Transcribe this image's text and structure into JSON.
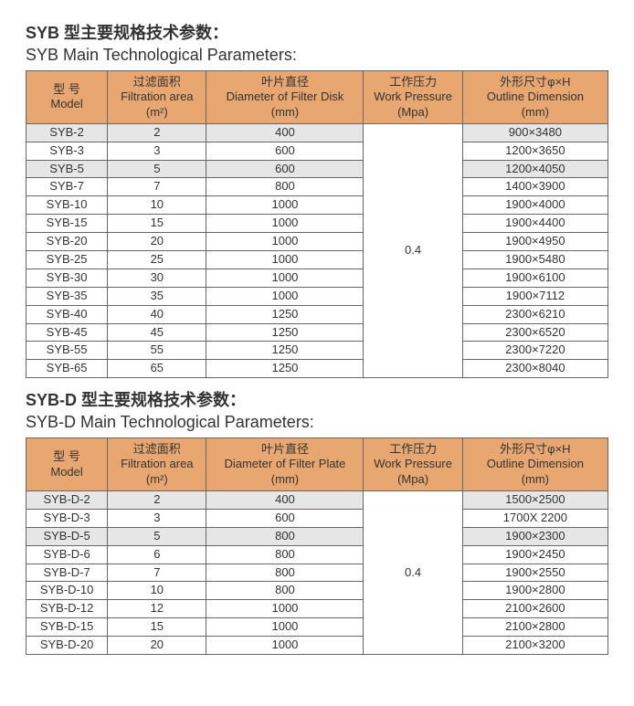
{
  "section1": {
    "title_cn": "SYB 型主要规格技术参数：",
    "title_en": "SYB Main Technological Parameters:",
    "headers": {
      "model_cn": "型 号",
      "model_en": "Model",
      "area_cn": "过滤面积",
      "area_en": "Filtration area",
      "area_unit": "(m²)",
      "diameter_cn": "叶片直径",
      "diameter_en": "Diameter of Filter Disk",
      "diameter_unit": "(mm)",
      "pressure_cn": "工作压力",
      "pressure_en": "Work Pressure",
      "pressure_unit": "(Mpa)",
      "outline_cn": "外形尺寸φ×H",
      "outline_en": "Outline Dimension",
      "outline_unit": "(mm)"
    },
    "pressure_value": "0.4",
    "col_widths": [
      "14%",
      "17%",
      "27%",
      "17%",
      "25%"
    ],
    "rows": [
      {
        "model": "SYB-2",
        "area": "2",
        "diameter": "400",
        "outline": "900×3480",
        "shade": true
      },
      {
        "model": "SYB-3",
        "area": "3",
        "diameter": "600",
        "outline": "1200×3650",
        "shade": false
      },
      {
        "model": "SYB-5",
        "area": "5",
        "diameter": "600",
        "outline": "1200×4050",
        "shade": true
      },
      {
        "model": "SYB-7",
        "area": "7",
        "diameter": "800",
        "outline": "1400×3900",
        "shade": false
      },
      {
        "model": "SYB-10",
        "area": "10",
        "diameter": "1000",
        "outline": "1900×4000",
        "shade": false
      },
      {
        "model": "SYB-15",
        "area": "15",
        "diameter": "1000",
        "outline": "1900×4400",
        "shade": false
      },
      {
        "model": "SYB-20",
        "area": "20",
        "diameter": "1000",
        "outline": "1900×4950",
        "shade": false
      },
      {
        "model": "SYB-25",
        "area": "25",
        "diameter": "1000",
        "outline": "1900×5480",
        "shade": false
      },
      {
        "model": "SYB-30",
        "area": "30",
        "diameter": "1000",
        "outline": "1900×6100",
        "shade": false
      },
      {
        "model": "SYB-35",
        "area": "35",
        "diameter": "1000",
        "outline": "1900×7112",
        "shade": false
      },
      {
        "model": "SYB-40",
        "area": "40",
        "diameter": "1250",
        "outline": "2300×6210",
        "shade": false
      },
      {
        "model": "SYB-45",
        "area": "45",
        "diameter": "1250",
        "outline": "2300×6520",
        "shade": false
      },
      {
        "model": "SYB-55",
        "area": "55",
        "diameter": "1250",
        "outline": "2300×7220",
        "shade": false
      },
      {
        "model": "SYB-65",
        "area": "65",
        "diameter": "1250",
        "outline": "2300×8040",
        "shade": false
      }
    ]
  },
  "section2": {
    "title_cn": "SYB-D 型主要规格技术参数：",
    "title_en": "SYB-D Main Technological Parameters:",
    "headers": {
      "model_cn": "型 号",
      "model_en": "Model",
      "area_cn": "过滤面积",
      "area_en": "Filtration area",
      "area_unit": "(m²)",
      "diameter_cn": "叶片直径",
      "diameter_en": "Diameter of Filter Plate",
      "diameter_unit": "(mm)",
      "pressure_cn": "工作压力",
      "pressure_en": "Work Pressure",
      "pressure_unit": "(Mpa)",
      "outline_cn": "外形尺寸φ×H",
      "outline_en": "Outline Dimension",
      "outline_unit": "(mm)"
    },
    "pressure_value": "0.4",
    "col_widths": [
      "14%",
      "17%",
      "27%",
      "17%",
      "25%"
    ],
    "rows": [
      {
        "model": "SYB-D-2",
        "area": "2",
        "diameter": "400",
        "outline": "1500×2500",
        "shade": true
      },
      {
        "model": "SYB-D-3",
        "area": "3",
        "diameter": "600",
        "outline": "1700X 2200",
        "shade": false
      },
      {
        "model": "SYB-D-5",
        "area": "5",
        "diameter": "800",
        "outline": "1900×2300",
        "shade": true
      },
      {
        "model": "SYB-D-6",
        "area": "6",
        "diameter": "800",
        "outline": "1900×2450",
        "shade": false
      },
      {
        "model": "SYB-D-7",
        "area": "7",
        "diameter": "800",
        "outline": "1900×2550",
        "shade": false
      },
      {
        "model": "SYB-D-10",
        "area": "10",
        "diameter": "800",
        "outline": "1900×2800",
        "shade": false
      },
      {
        "model": "SYB-D-12",
        "area": "12",
        "diameter": "1000",
        "outline": "2100×2600",
        "shade": false
      },
      {
        "model": "SYB-D-15",
        "area": "15",
        "diameter": "1000",
        "outline": "2100×2800",
        "shade": false
      },
      {
        "model": "SYB-D-20",
        "area": "20",
        "diameter": "1000",
        "outline": "2100×3200",
        "shade": false
      }
    ]
  }
}
